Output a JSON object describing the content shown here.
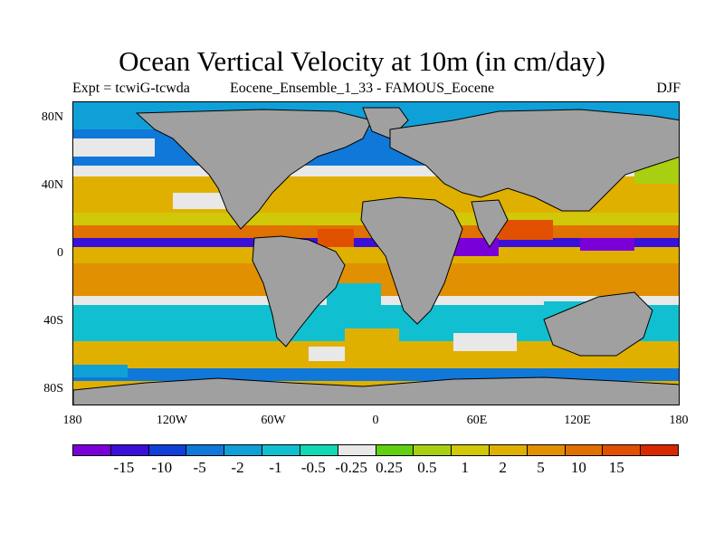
{
  "header": {
    "title": "Ocean Vertical Velocity at 10m (in cm/day)",
    "expt": "Expt = tcwiG-tcwda",
    "simulation": "Eocene_Ensemble_1_33 - FAMOUS_Eocene",
    "season": "DJF"
  },
  "map": {
    "land_color": "#a0a0a0",
    "coastline_color": "#000000",
    "lat_labels": [
      "80N",
      "40N",
      "0",
      "40S",
      "80S"
    ],
    "lat_values": [
      80,
      40,
      0,
      -40,
      -80
    ],
    "lon_labels": [
      "180",
      "120W",
      "60W",
      "0",
      "60E",
      "120E",
      "180"
    ],
    "lon_values": [
      -180,
      -120,
      -60,
      0,
      60,
      120,
      180
    ]
  },
  "colorbar": {
    "colors": [
      "#7a00d8",
      "#3a10d8",
      "#1040d8",
      "#1078d8",
      "#10a0d8",
      "#10c0d0",
      "#10d8b0",
      "#e8e8e8",
      "#60d010",
      "#a8d010",
      "#d0c808",
      "#e0b000",
      "#e09000",
      "#e07000",
      "#e05000",
      "#d82800"
    ],
    "labels": [
      "-15",
      "-10",
      "-5",
      "-2",
      "-1",
      "-0.5",
      "-0.25",
      "0.25",
      "0.5",
      "1",
      "2",
      "5",
      "10",
      "15"
    ]
  }
}
